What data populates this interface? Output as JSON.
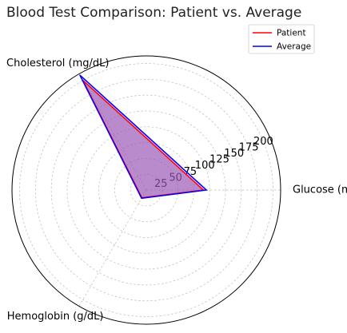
{
  "chart_data": {
    "type": "radar",
    "title": "Blood Test Comparison: Patient vs. Average",
    "categories": [
      "Glucose (mg/dL)",
      "Cholesterol (mg/dL)",
      "Hemoglobin (g/dL)"
    ],
    "radial_ticks": [
      25,
      50,
      75,
      100,
      125,
      150,
      175,
      200
    ],
    "rlim": [
      0,
      212
    ],
    "grid": true,
    "legend_position": "top-right",
    "series": [
      {
        "name": "Patient",
        "values": [
          90,
          200,
          14
        ],
        "color": "#ff0000"
      },
      {
        "name": "Average",
        "values": [
          95,
          210,
          15
        ],
        "color": "#0000ff"
      }
    ],
    "fill_color": "#9b59b6"
  }
}
